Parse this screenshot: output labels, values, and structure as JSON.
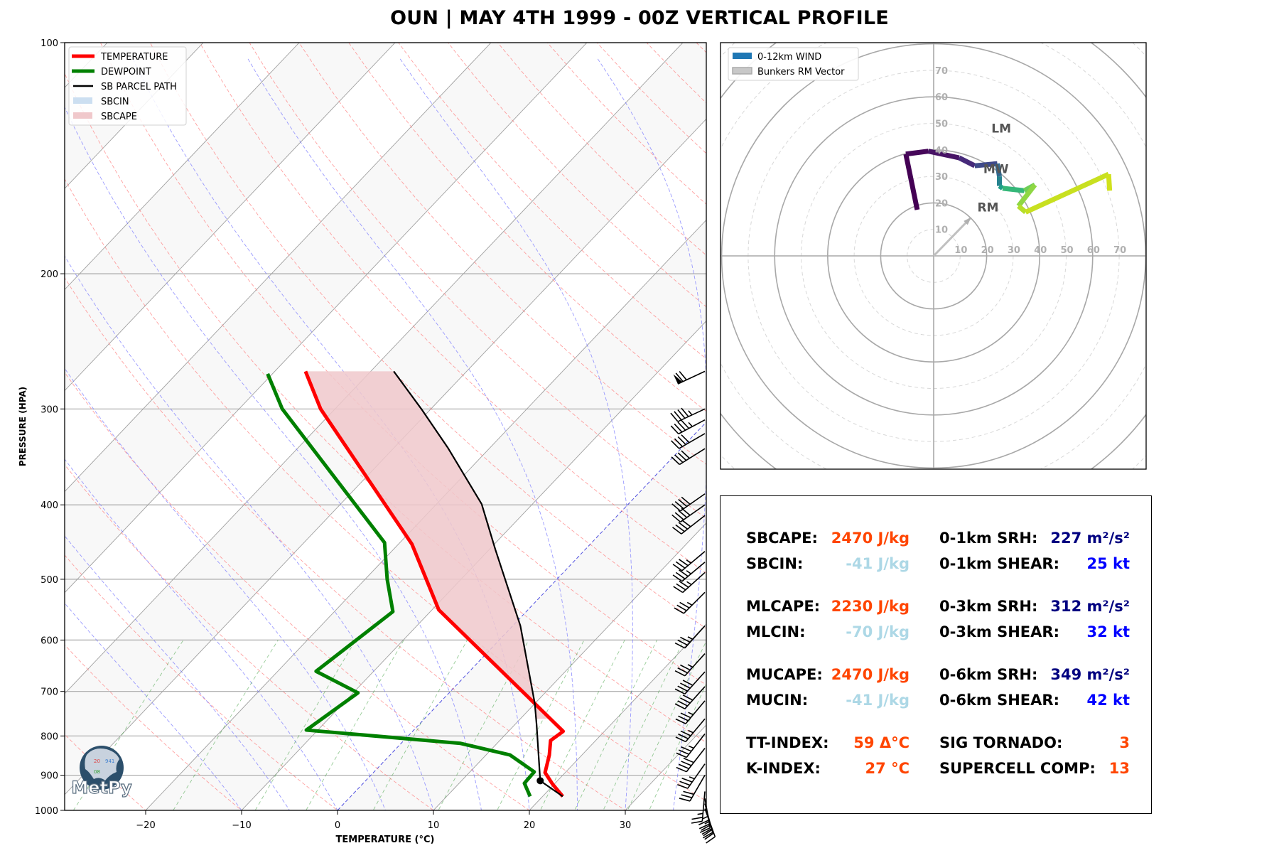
{
  "title": "OUN | MAY 4TH 1999 - 00Z VERTICAL PROFILE",
  "colors": {
    "temperature": "#ff0000",
    "dewpoint": "#008000",
    "parcel": "#000000",
    "sbcin_fill": "#c6dbef",
    "sbcape_fill": "#f0c8cb",
    "dry_adiabat": "#ff6060",
    "moist_adiabat": "#6060ff",
    "mixing_ratio": "#40a040",
    "hodo_wind": "#1f77b4",
    "hodo_rm": "#c0c0c0"
  },
  "logo": {
    "text": "MetPy",
    "numbers": [
      "20",
      "941",
      "08"
    ]
  },
  "chart_data": [
    {
      "type": "line",
      "name": "skew-t",
      "xlabel": "TEMPERATURE (°C)",
      "ylabel": "PRESSURE (HPA)",
      "xlim": [
        -28.5,
        38.5
      ],
      "ylim": [
        1000,
        100
      ],
      "yscale": "log",
      "xticks": [
        -20,
        -10,
        0,
        10,
        20,
        30
      ],
      "xtick_labels": [
        "−20",
        "−10",
        "0",
        "10",
        "20",
        "30"
      ],
      "yticks": [
        1000,
        900,
        800,
        700,
        600,
        500,
        400,
        300,
        200,
        100
      ],
      "ytick_labels": [
        "1000",
        "900",
        "800",
        "700",
        "600",
        "500",
        "400",
        "300",
        "200",
        "100"
      ],
      "grid": true,
      "legend": {
        "placement": "top-left",
        "entries": [
          "TEMPERATURE",
          "DEWPOINT",
          "SB PARCEL PATH",
          "SBCIN",
          "SBCAPE"
        ]
      },
      "series": [
        {
          "name": "TEMPERATURE",
          "pressure": [
            959,
            924,
            893,
            847,
            811,
            789,
            726,
            548,
            450,
            300,
            268
          ],
          "temperature": [
            22.1,
            19.8,
            17.9,
            16.6,
            15.3,
            15.7,
            10.0,
            -9.3,
            -18.6,
            -41.5,
            -46.8
          ]
        },
        {
          "name": "DEWPOINT",
          "pressure": [
            959,
            922,
            891,
            847,
            818,
            786,
            703,
            659,
            551,
            500,
            448,
            300,
            270
          ],
          "temperature": [
            18.7,
            16.8,
            16.7,
            12.5,
            6.2,
            -11.2,
            -9.5,
            -16.0,
            -13.9,
            -17.7,
            -21.6,
            -45.5,
            -50.5
          ]
        },
        {
          "name": "SB PARCEL PATH",
          "pressure": [
            959,
            915,
            774,
            726,
            575,
            457,
            399,
            337,
            300,
            268
          ],
          "temperature": [
            22.1,
            18.2,
            12.3,
            10.0,
            0.8,
            -9.4,
            -15.3,
            -24.4,
            -31.0,
            -37.6
          ]
        }
      ],
      "lcl": {
        "pressure": 915,
        "temperature": 18.2
      },
      "wind_barbs": [
        {
          "pressure": 268,
          "speed_kt": 70,
          "direction_deg": 245
        },
        {
          "pressure": 300,
          "speed_kt": 45,
          "direction_deg": 245
        },
        {
          "pressure": 310,
          "speed_kt": 45,
          "direction_deg": 242
        },
        {
          "pressure": 323,
          "speed_kt": 40,
          "direction_deg": 240
        },
        {
          "pressure": 338,
          "speed_kt": 40,
          "direction_deg": 238
        },
        {
          "pressure": 387,
          "speed_kt": 40,
          "direction_deg": 235
        },
        {
          "pressure": 400,
          "speed_kt": 40,
          "direction_deg": 235
        },
        {
          "pressure": 413,
          "speed_kt": 40,
          "direction_deg": 232
        },
        {
          "pressure": 460,
          "speed_kt": 35,
          "direction_deg": 230
        },
        {
          "pressure": 475,
          "speed_kt": 35,
          "direction_deg": 230
        },
        {
          "pressure": 490,
          "speed_kt": 35,
          "direction_deg": 228
        },
        {
          "pressure": 520,
          "speed_kt": 35,
          "direction_deg": 225
        },
        {
          "pressure": 575,
          "speed_kt": 35,
          "direction_deg": 222
        },
        {
          "pressure": 625,
          "speed_kt": 35,
          "direction_deg": 222
        },
        {
          "pressure": 660,
          "speed_kt": 40,
          "direction_deg": 222
        },
        {
          "pressure": 690,
          "speed_kt": 40,
          "direction_deg": 222
        },
        {
          "pressure": 720,
          "speed_kt": 35,
          "direction_deg": 220
        },
        {
          "pressure": 760,
          "speed_kt": 35,
          "direction_deg": 220
        },
        {
          "pressure": 795,
          "speed_kt": 35,
          "direction_deg": 218
        },
        {
          "pressure": 830,
          "speed_kt": 40,
          "direction_deg": 218
        },
        {
          "pressure": 870,
          "speed_kt": 35,
          "direction_deg": 215
        },
        {
          "pressure": 900,
          "speed_kt": 30,
          "direction_deg": 210
        },
        {
          "pressure": 945,
          "speed_kt": 25,
          "direction_deg": 185
        },
        {
          "pressure": 965,
          "speed_kt": 35,
          "direction_deg": 170
        },
        {
          "pressure": 980,
          "speed_kt": 35,
          "direction_deg": 165
        },
        {
          "pressure": 995,
          "speed_kt": 30,
          "direction_deg": 160
        }
      ]
    },
    {
      "type": "line",
      "name": "hodograph",
      "xlim": [
        -80,
        80
      ],
      "ylim": [
        -80,
        80
      ],
      "ring_labels": [
        "10",
        "20",
        "30",
        "40",
        "50",
        "60",
        "70"
      ],
      "ring_values": [
        10,
        20,
        30,
        40,
        50,
        60,
        70
      ],
      "legend": {
        "placement": "top-left",
        "entries": [
          "0-12km WIND",
          "Bunkers RM Vector"
        ]
      },
      "u": [
        -6.2,
        -10.5,
        -2.0,
        9.6,
        15.5,
        24.0,
        24.8,
        24.8,
        26.0,
        34.2,
        38.2,
        32.0,
        34.7,
        66.0,
        66.4
      ],
      "v": [
        17.4,
        38.4,
        39.5,
        37.0,
        34.0,
        34.8,
        30.0,
        26.4,
        25.5,
        24.6,
        26.8,
        18.8,
        16.5,
        30.8,
        24.6
      ],
      "rm_vector": {
        "u": 13.8,
        "v": 14.2
      },
      "annotations": [
        {
          "text": "LM",
          "u": 25.5,
          "v": 46.5
        },
        {
          "text": "MW",
          "u": 23.5,
          "v": 31.2
        },
        {
          "text": "RM",
          "u": 20.5,
          "v": 16.8
        }
      ]
    }
  ],
  "stats": {
    "rows": [
      {
        "l1": "SBCAPE:",
        "v1": "2470 J/kg",
        "c1": "cape",
        "l2": "0-1km SRH:",
        "v2": "227 m²/s²",
        "c2": "srh"
      },
      {
        "l1": "SBCIN:",
        "v1": "-41 J/kg",
        "c1": "cin",
        "l2": "0-1km SHEAR:",
        "v2": "25 kt",
        "c2": "shear"
      },
      {
        "l1": "MLCAPE:",
        "v1": "2230 J/kg",
        "c1": "cape",
        "l2": "0-3km SRH:",
        "v2": "312 m²/s²",
        "c2": "srh"
      },
      {
        "l1": "MLCIN:",
        "v1": "-70 J/kg",
        "c1": "cin",
        "l2": "0-3km SHEAR:",
        "v2": "32 kt",
        "c2": "shear"
      },
      {
        "l1": "MUCAPE:",
        "v1": "2470 J/kg",
        "c1": "cape",
        "l2": "0-6km SRH:",
        "v2": "349 m²/s²",
        "c2": "srh"
      },
      {
        "l1": "MUCIN:",
        "v1": "-41 J/kg",
        "c1": "cin",
        "l2": "0-6km SHEAR:",
        "v2": "42 kt",
        "c2": "shear"
      },
      {
        "l1": "TT-INDEX:",
        "v1": "59 Δ°C",
        "c1": "idx",
        "l2": "SIG TORNADO:",
        "v2": "3",
        "c2": "idx"
      },
      {
        "l1": "K-INDEX:",
        "v1": "27 °C",
        "c1": "idx",
        "l2": "SUPERCELL COMP:",
        "v2": "13",
        "c2": "idx"
      }
    ]
  }
}
